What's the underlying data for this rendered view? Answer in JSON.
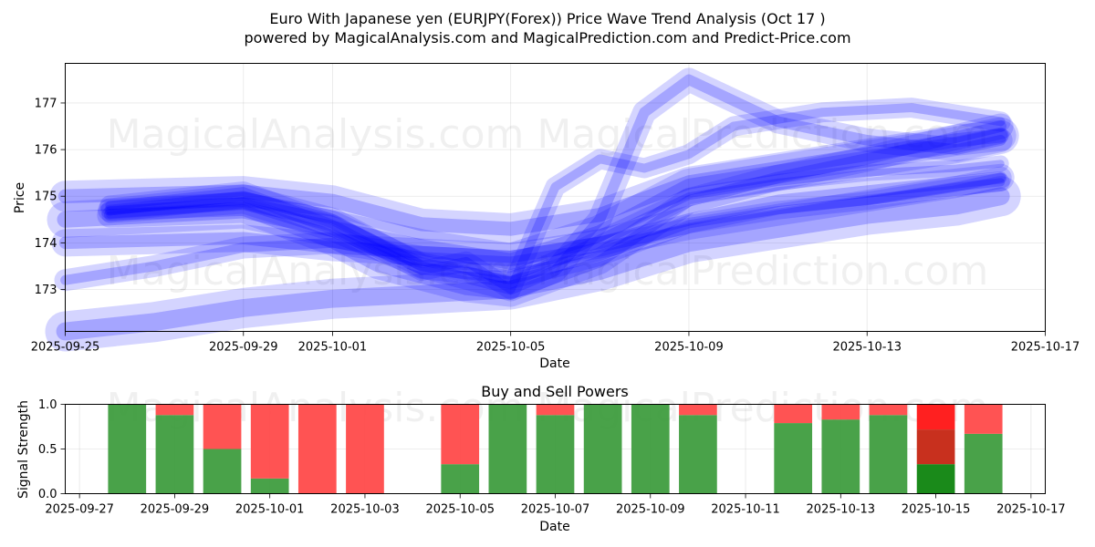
{
  "title_line1": "Euro With Japanese yen (EURJPY(Forex)) Price Wave Trend Analysis (Oct 17 )",
  "title_line2": "powered by MagicalAnalysis.com and MagicalPrediction.com and Predict-Price.com",
  "watermark_top": "MagicalAnalysis.com    MagicalPrediction.com",
  "watermark_mid": "MagicalAnalysis.com    MagicalPrediction.com",
  "watermark_bottom": "MagicalAnalysis.com    MagicalPrediction.com",
  "colors": {
    "wave": "#0000ff",
    "buy": "#3a9a3a",
    "sell": "#ff4a4a",
    "buy_strong": "#1a8a1a",
    "sell_strong": "#c8301e",
    "sell_bright": "#ff2020"
  },
  "chart_data": [
    {
      "type": "line",
      "title": "",
      "xlabel": "Date",
      "ylabel": "Price",
      "x_ticks": [
        "2025-09-25",
        "2025-09-29",
        "2025-10-01",
        "2025-10-05",
        "2025-10-09",
        "2025-10-13",
        "2025-10-17"
      ],
      "y_ticks": [
        173,
        174,
        175,
        176,
        177
      ],
      "xlim": [
        "2025-09-25",
        "2025-10-17"
      ],
      "ylim": [
        172.1,
        177.85
      ],
      "grid": true,
      "series": [
        {
          "x": [
            "2025-09-25",
            "2025-09-27",
            "2025-09-29",
            "2025-10-01",
            "2025-10-03",
            "2025-10-05",
            "2025-10-07",
            "2025-10-09",
            "2025-10-11",
            "2025-10-13",
            "2025-10-15",
            "2025-10-16"
          ],
          "values": [
            175.0,
            175.05,
            175.1,
            174.9,
            174.4,
            174.3,
            174.6,
            175.3,
            175.6,
            175.9,
            176.2,
            176.3
          ]
        },
        {
          "x": [
            "2025-09-25",
            "2025-09-27",
            "2025-09-29",
            "2025-10-01",
            "2025-10-03",
            "2025-10-05",
            "2025-10-07",
            "2025-10-09",
            "2025-10-11",
            "2025-10-13",
            "2025-10-15",
            "2025-10-16"
          ],
          "values": [
            174.5,
            174.6,
            174.7,
            174.3,
            173.9,
            173.6,
            174.2,
            175.2,
            175.5,
            175.8,
            176.1,
            176.3
          ]
        },
        {
          "x": [
            "2025-09-25",
            "2025-09-27",
            "2025-09-29",
            "2025-10-01",
            "2025-10-03",
            "2025-10-05",
            "2025-10-07",
            "2025-10-09",
            "2025-10-11",
            "2025-10-13",
            "2025-10-15",
            "2025-10-16"
          ],
          "values": [
            174.0,
            174.05,
            174.1,
            173.9,
            173.8,
            173.7,
            174.0,
            174.5,
            174.9,
            175.1,
            175.3,
            175.4
          ]
        },
        {
          "x": [
            "2025-09-25",
            "2025-09-27",
            "2025-09-29",
            "2025-10-01",
            "2025-10-03",
            "2025-10-05",
            "2025-10-07",
            "2025-10-09",
            "2025-10-11",
            "2025-10-13",
            "2025-10-15",
            "2025-10-16"
          ],
          "values": [
            173.2,
            173.5,
            173.9,
            174.0,
            173.7,
            173.6,
            173.9,
            174.3,
            174.6,
            174.9,
            175.2,
            175.4
          ]
        },
        {
          "x": [
            "2025-09-25",
            "2025-09-27",
            "2025-09-29",
            "2025-10-01",
            "2025-10-03",
            "2025-10-05",
            "2025-10-07",
            "2025-10-09",
            "2025-10-11",
            "2025-10-13",
            "2025-10-15",
            "2025-10-16"
          ],
          "values": [
            172.1,
            172.3,
            172.6,
            172.8,
            172.9,
            173.0,
            173.4,
            174.0,
            174.3,
            174.6,
            174.8,
            175.0
          ]
        },
        {
          "x": [
            "2025-09-26",
            "2025-09-29",
            "2025-10-01",
            "2025-10-03",
            "2025-10-05",
            "2025-10-07",
            "2025-10-09",
            "2025-10-11",
            "2025-10-13",
            "2025-10-15",
            "2025-10-16"
          ],
          "values": [
            174.7,
            174.9,
            174.5,
            173.6,
            173.2,
            173.7,
            174.4,
            174.7,
            174.9,
            175.2,
            175.3
          ]
        },
        {
          "x": [
            "2025-09-26",
            "2025-09-29",
            "2025-10-01",
            "2025-10-03",
            "2025-10-05",
            "2025-10-06",
            "2025-10-07",
            "2025-10-08",
            "2025-10-09",
            "2025-10-11",
            "2025-10-13",
            "2025-10-15",
            "2025-10-16"
          ],
          "values": [
            174.7,
            175.0,
            174.5,
            173.5,
            173.0,
            173.4,
            174.5,
            176.8,
            177.5,
            176.6,
            176.2,
            176.0,
            176.2
          ]
        },
        {
          "x": [
            "2025-09-26",
            "2025-09-29",
            "2025-10-01",
            "2025-10-03",
            "2025-10-04",
            "2025-10-05",
            "2025-10-06",
            "2025-10-07",
            "2025-10-08",
            "2025-10-09",
            "2025-10-10",
            "2025-10-12",
            "2025-10-14",
            "2025-10-16"
          ],
          "values": [
            174.8,
            175.1,
            174.4,
            173.4,
            173.6,
            173.0,
            175.2,
            175.8,
            175.6,
            175.9,
            176.5,
            176.8,
            176.9,
            176.6
          ]
        },
        {
          "x": [
            "2025-09-26",
            "2025-09-29",
            "2025-10-01",
            "2025-10-02",
            "2025-10-04",
            "2025-10-05",
            "2025-10-07",
            "2025-10-09",
            "2025-10-11",
            "2025-10-13",
            "2025-10-16"
          ],
          "values": [
            174.6,
            174.7,
            174.0,
            173.5,
            173.0,
            172.9,
            173.6,
            174.9,
            175.4,
            175.8,
            176.5
          ]
        },
        {
          "x": [
            "2025-09-26",
            "2025-09-29",
            "2025-10-01",
            "2025-10-03",
            "2025-10-05",
            "2025-10-07",
            "2025-10-09",
            "2025-10-11",
            "2025-10-13",
            "2025-10-15",
            "2025-10-16"
          ],
          "values": [
            174.6,
            174.8,
            174.2,
            173.4,
            173.2,
            174.1,
            175.0,
            175.3,
            175.5,
            175.6,
            175.7
          ]
        }
      ]
    },
    {
      "type": "bar",
      "title": "Buy and Sell Powers",
      "xlabel": "Date",
      "ylabel": "Signal Strength",
      "x_ticks": [
        "2025-09-27",
        "2025-09-29",
        "2025-10-01",
        "2025-10-03",
        "2025-10-05",
        "2025-10-07",
        "2025-10-09",
        "2025-10-11",
        "2025-10-13",
        "2025-10-15",
        "2025-10-17"
      ],
      "y_ticks": [
        "0.0",
        "0.5",
        "1.0"
      ],
      "xlim": [
        "2025-09-26.7",
        "2025-10-17.3"
      ],
      "ylim": [
        0,
        1
      ],
      "grid": true,
      "categories": [
        "2025-09-28",
        "2025-09-29",
        "2025-09-30",
        "2025-10-01",
        "2025-10-02",
        "2025-10-03",
        "2025-10-05",
        "2025-10-06",
        "2025-10-07",
        "2025-10-08",
        "2025-10-09",
        "2025-10-10",
        "2025-10-12",
        "2025-10-13",
        "2025-10-14",
        "2025-10-15",
        "2025-10-16"
      ],
      "series": [
        {
          "name": "Buy",
          "values": [
            1.0,
            0.88,
            0.5,
            0.17,
            0.0,
            0.0,
            0.33,
            1.0,
            0.88,
            1.0,
            1.0,
            0.88,
            0.79,
            0.83,
            0.88,
            0.33,
            0.67
          ]
        },
        {
          "name": "Sell",
          "values": [
            0.0,
            0.12,
            0.5,
            0.83,
            1.0,
            1.0,
            0.67,
            0.0,
            0.12,
            0.0,
            0.0,
            0.12,
            0.21,
            0.17,
            0.12,
            0.67,
            0.33
          ]
        }
      ]
    }
  ]
}
